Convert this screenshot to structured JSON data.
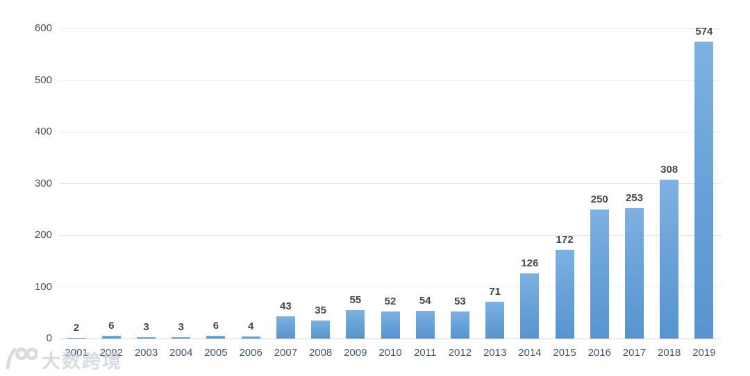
{
  "chart_data": {
    "type": "bar",
    "title": "",
    "xlabel": "",
    "ylabel": "",
    "categories": [
      "2001",
      "2002",
      "2003",
      "2004",
      "2005",
      "2006",
      "2007",
      "2008",
      "2009",
      "2010",
      "2011",
      "2012",
      "2013",
      "2014",
      "2015",
      "2016",
      "2017",
      "2018",
      "2019"
    ],
    "values": [
      2,
      6,
      3,
      3,
      6,
      4,
      43,
      35,
      55,
      52,
      54,
      53,
      71,
      126,
      172,
      250,
      253,
      308,
      574
    ],
    "ylim": [
      0,
      600
    ],
    "yticks": [
      0,
      100,
      200,
      300,
      400,
      500,
      600
    ],
    "grid": "horizontal",
    "legend_position": "none",
    "data_labels_shown": true,
    "colors": {
      "bar_top": "#7EB1E2",
      "bar_bottom": "#5794CF",
      "gridline": "#E8E9EB",
      "axis_line": "#D4D5D8",
      "data_label": "#44474F",
      "axis_label": "#44546A",
      "background": "#FFFFFF"
    }
  },
  "watermark": {
    "icon": "100-swoosh-logo",
    "text": "大数跨境"
  }
}
